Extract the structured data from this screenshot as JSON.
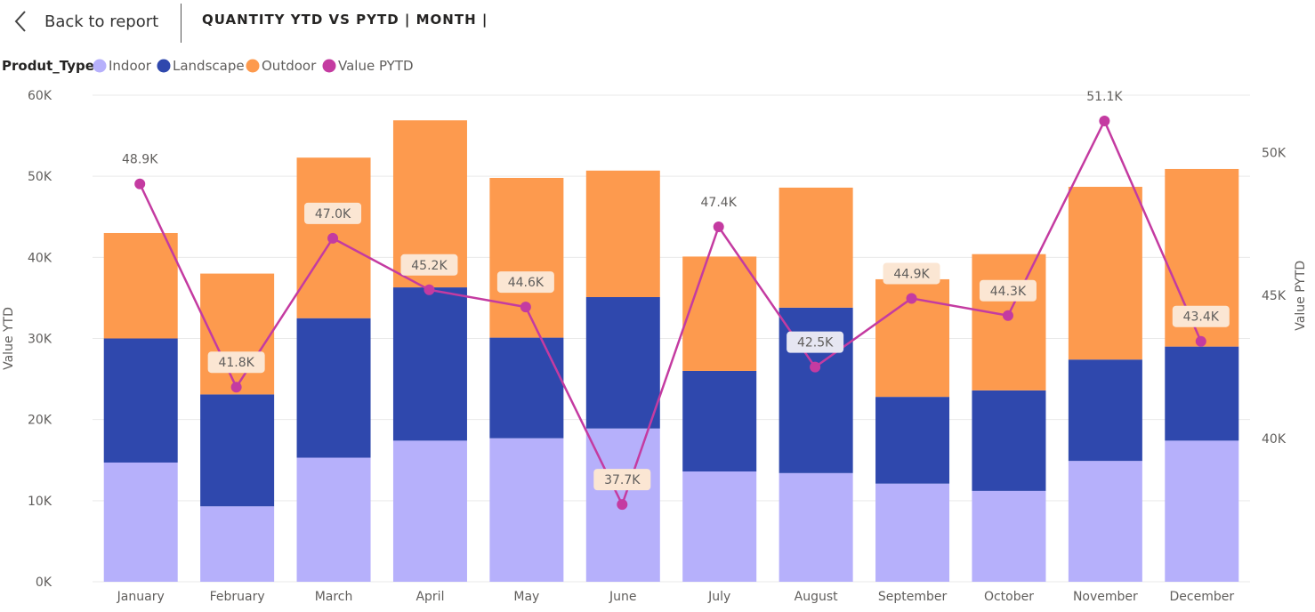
{
  "header": {
    "back_label": "Back to report",
    "title": "QUANTITY YTD VS PYTD | MONTH |"
  },
  "colors": {
    "indoor": "#b6b0fb",
    "landscape": "#2f48ad",
    "outdoor": "#fd9a4e",
    "pytd": "#c43ba1",
    "grid": "#e9e9e9",
    "label_bg": "#fbe6d3",
    "label_bg_alt": "#e6e6f2"
  },
  "chart_data": {
    "type": "bar",
    "stacked": true,
    "legend": {
      "title": "Produt_Type",
      "position": "top-left",
      "entries": [
        "Indoor",
        "Landscape",
        "Outdoor",
        "Value PYTD"
      ]
    },
    "categories": [
      "January",
      "February",
      "March",
      "April",
      "May",
      "June",
      "July",
      "August",
      "September",
      "October",
      "November",
      "December"
    ],
    "series": [
      {
        "name": "Indoor",
        "values": [
          14.7,
          9.3,
          15.3,
          17.4,
          17.7,
          18.9,
          13.6,
          13.4,
          12.1,
          11.2,
          14.9,
          17.4
        ]
      },
      {
        "name": "Landscape",
        "values": [
          15.3,
          13.8,
          17.2,
          18.9,
          12.4,
          16.2,
          12.4,
          20.4,
          10.7,
          12.4,
          12.5,
          11.6
        ]
      },
      {
        "name": "Outdoor",
        "values": [
          13.0,
          14.9,
          19.8,
          20.6,
          19.7,
          15.6,
          14.1,
          14.8,
          14.5,
          16.8,
          21.3,
          21.9
        ]
      }
    ],
    "line_series": {
      "name": "Value PYTD",
      "values": [
        48.9,
        41.8,
        47.0,
        45.2,
        44.6,
        37.7,
        47.4,
        42.5,
        44.9,
        44.3,
        51.1,
        43.4
      ],
      "labels": [
        "48.9K",
        "41.8K",
        "47.0K",
        "45.2K",
        "44.6K",
        "37.7K",
        "47.4K",
        "42.5K",
        "44.9K",
        "44.3K",
        "51.1K",
        "43.4K"
      ],
      "label_style": [
        "plain",
        "boxed",
        "boxed",
        "boxed",
        "boxed",
        "boxed",
        "plain",
        "boxed-alt",
        "boxed",
        "boxed",
        "plain",
        "boxed"
      ]
    },
    "ylabel": "Value YTD",
    "ylim": [
      0,
      60
    ],
    "yticks": [
      0,
      10,
      20,
      30,
      40,
      50,
      60
    ],
    "ytick_labels": [
      "0K",
      "10K",
      "20K",
      "30K",
      "40K",
      "50K",
      "60K"
    ],
    "y2label": "Value PYTD",
    "y2lim": [
      35,
      52
    ],
    "y2ticks": [
      40,
      45,
      50
    ],
    "y2tick_labels": [
      "40K",
      "45K",
      "50K"
    ],
    "grid": true
  }
}
